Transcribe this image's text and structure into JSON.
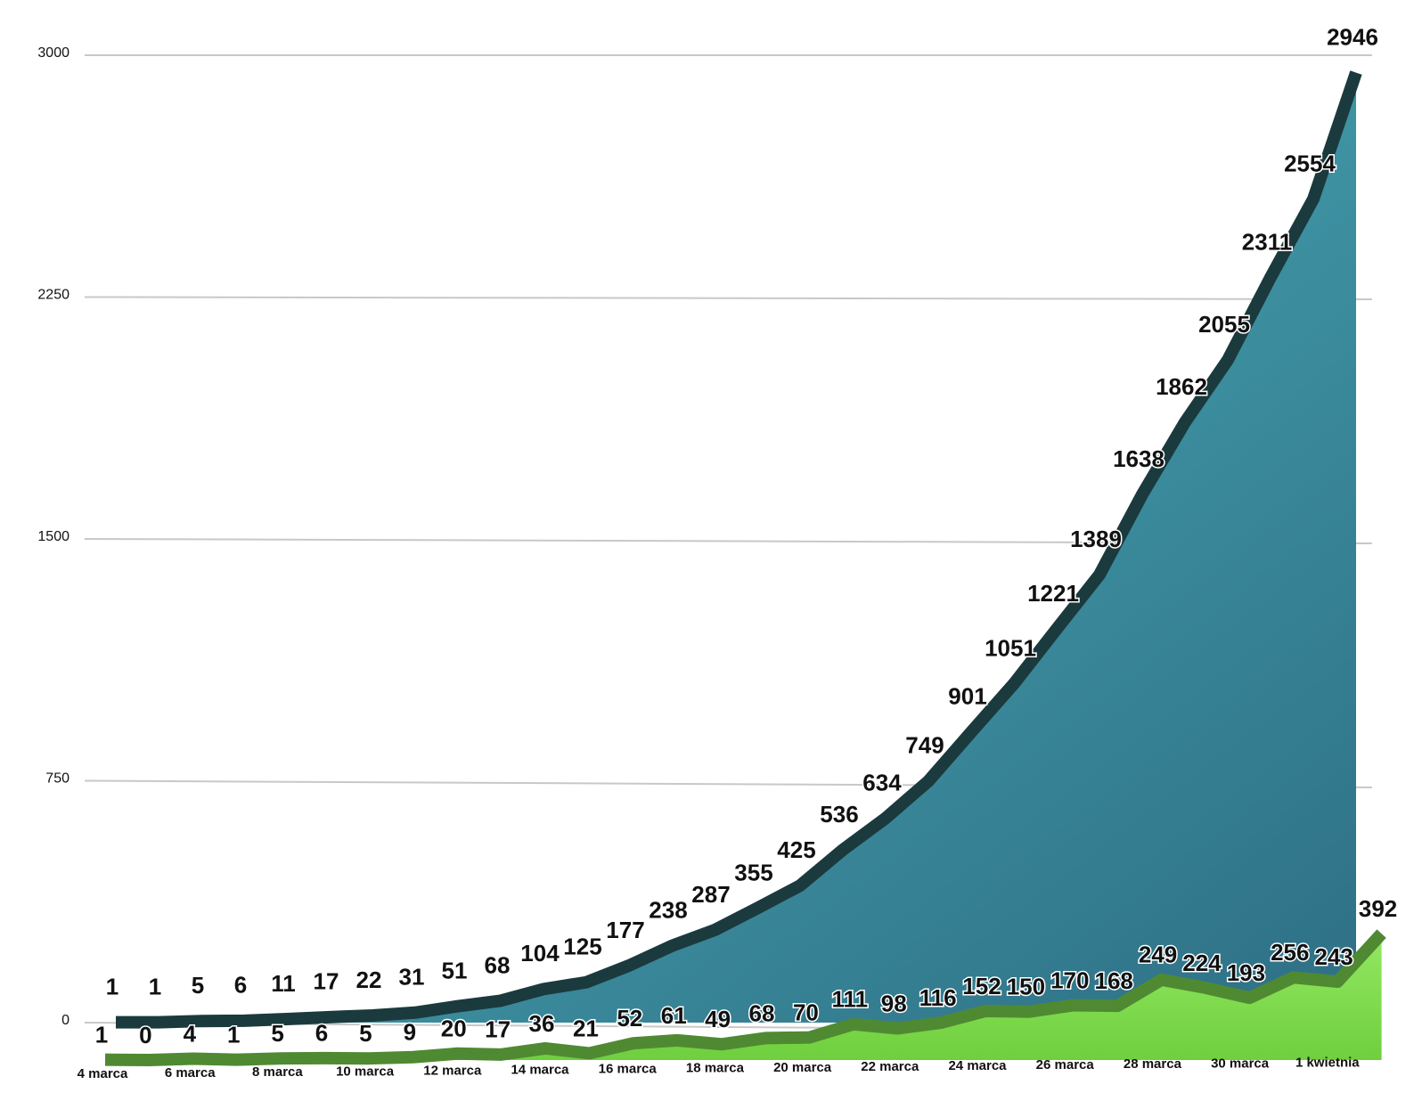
{
  "chart_data": {
    "type": "area",
    "categories": [
      "4 marca",
      null,
      "6 marca",
      null,
      "8 marca",
      null,
      "10 marca",
      null,
      "12 marca",
      null,
      "14 marca",
      null,
      "16 marca",
      null,
      "18 marca",
      null,
      "20 marca",
      null,
      "22 marca",
      null,
      "24 marca",
      null,
      "26 marca",
      null,
      "28 marca",
      null,
      "30 marca",
      null,
      "1 kwietnia",
      null
    ],
    "series": [
      {
        "color": "#4aaab6",
        "values": [
          1,
          1,
          5,
          6,
          11,
          17,
          22,
          31,
          51,
          68,
          104,
          125,
          177,
          238,
          287,
          355,
          425,
          536,
          634,
          749,
          901,
          1051,
          1221,
          1389,
          1638,
          1862,
          2055,
          2311,
          2554,
          2946
        ]
      },
      {
        "color": "#8ee25a",
        "values": [
          1,
          0,
          4,
          1,
          5,
          6,
          5,
          9,
          20,
          17,
          36,
          21,
          52,
          61,
          49,
          68,
          70,
          111,
          98,
          116,
          152,
          150,
          170,
          168,
          249,
          224,
          193,
          256,
          243,
          392
        ]
      }
    ],
    "ylim": [
      0,
      3000
    ],
    "yticks": [
      0,
      750,
      1500,
      2250,
      3000
    ],
    "grid": true
  }
}
